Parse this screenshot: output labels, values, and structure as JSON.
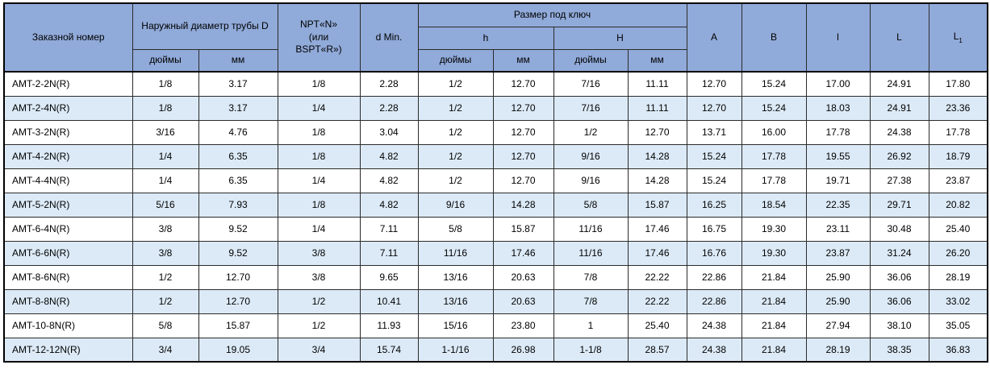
{
  "colors": {
    "header_bg": "#90aad9",
    "stripe_bg": "#dceaf7",
    "row_bg": "#ffffff",
    "grid_line": "#2b2b2b",
    "outer_border": "#000000",
    "text": "#000000"
  },
  "table": {
    "header": {
      "order_number": "Заказной номер",
      "outer_diameter": "Наружный диаметр трубы D",
      "npt_line1": "NPT«N»",
      "npt_line2": "(или",
      "npt_line3": "BSPT«R»)",
      "d_min": "d Min.",
      "wrench_size": "Размер под ключ",
      "h_lower": "h",
      "h_upper": "H",
      "inches": "дюймы",
      "mm": "мм",
      "col_a": "A",
      "col_b": "B",
      "col_l_small": "l",
      "col_l": "L",
      "col_l1_base": "L",
      "col_l1_sub": "1"
    },
    "rows": [
      [
        "AMT-2-2N(R)",
        "1/8",
        "3.17",
        "1/8",
        "2.28",
        "1/2",
        "12.70",
        "7/16",
        "11.11",
        "12.70",
        "15.24",
        "17.00",
        "24.91",
        "17.80"
      ],
      [
        "AMT-2-4N(R)",
        "1/8",
        "3.17",
        "1/4",
        "2.28",
        "1/2",
        "12.70",
        "7/16",
        "11.11",
        "12.70",
        "15.24",
        "18.03",
        "24.91",
        "23.36"
      ],
      [
        "AMT-3-2N(R)",
        "3/16",
        "4.76",
        "1/8",
        "3.04",
        "1/2",
        "12.70",
        "1/2",
        "12.70",
        "13.71",
        "16.00",
        "17.78",
        "24.38",
        "17.78"
      ],
      [
        "AMT-4-2N(R)",
        "1/4",
        "6.35",
        "1/8",
        "4.82",
        "1/2",
        "12.70",
        "9/16",
        "14.28",
        "15.24",
        "17.78",
        "19.55",
        "26.92",
        "18.79"
      ],
      [
        "AMT-4-4N(R)",
        "1/4",
        "6.35",
        "1/4",
        "4.82",
        "1/2",
        "12.70",
        "9/16",
        "14.28",
        "15.24",
        "17.78",
        "19.71",
        "27.38",
        "23.87"
      ],
      [
        "AMT-5-2N(R)",
        "5/16",
        "7.93",
        "1/8",
        "4.82",
        "9/16",
        "14.28",
        "5/8",
        "15.87",
        "16.25",
        "18.54",
        "22.35",
        "29.71",
        "20.82"
      ],
      [
        "AMT-6-4N(R)",
        "3/8",
        "9.52",
        "1/4",
        "7.11",
        "5/8",
        "15.87",
        "11/16",
        "17.46",
        "16.75",
        "19.30",
        "23.11",
        "30.48",
        "25.40"
      ],
      [
        "AMT-6-6N(R)",
        "3/8",
        "9.52",
        "3/8",
        "7.11",
        "11/16",
        "17.46",
        "11/16",
        "17.46",
        "16.76",
        "19.30",
        "23.87",
        "31.24",
        "26.20"
      ],
      [
        "AMT-8-6N(R)",
        "1/2",
        "12.70",
        "3/8",
        "9.65",
        "13/16",
        "20.63",
        "7/8",
        "22.22",
        "22.86",
        "21.84",
        "25.90",
        "36.06",
        "28.19"
      ],
      [
        "AMT-8-8N(R)",
        "1/2",
        "12.70",
        "1/2",
        "10.41",
        "13/16",
        "20.63",
        "7/8",
        "22.22",
        "22.86",
        "21.84",
        "25.90",
        "36.06",
        "33.02"
      ],
      [
        "AMT-10-8N(R)",
        "5/8",
        "15.87",
        "1/2",
        "11.93",
        "15/16",
        "23.80",
        "1",
        "25.40",
        "24.38",
        "21.84",
        "27.94",
        "38.10",
        "35.05"
      ],
      [
        "AMT-12-12N(R)",
        "3/4",
        "19.05",
        "3/4",
        "15.74",
        "1-1/16",
        "26.98",
        "1-1/8",
        "28.57",
        "24.38",
        "21.84",
        "28.19",
        "38.35",
        "36.83"
      ]
    ]
  }
}
